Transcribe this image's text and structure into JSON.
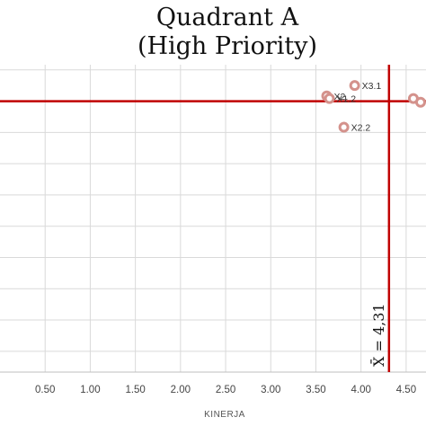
{
  "chart_data": {
    "type": "scatter",
    "title_lines": [
      "Quadrant A",
      "(High Priority)"
    ],
    "xlabel": "KINERJA",
    "ylabel": "",
    "xlim": [
      0.0,
      4.72
    ],
    "ylim": [
      4.03,
      4.62
    ],
    "x_ticks": [
      0.5,
      1.0,
      1.5,
      2.0,
      2.5,
      3.0,
      3.5,
      4.0,
      4.5
    ],
    "x_tick_labels": [
      "0.50",
      "1.00",
      "1.50",
      "2.00",
      "2.50",
      "3.00",
      "3.50",
      "4.00",
      "4.50"
    ],
    "y_gridlines": [
      4.07,
      4.13,
      4.19,
      4.25,
      4.31,
      4.37,
      4.43,
      4.49,
      4.55,
      4.61
    ],
    "grid": true,
    "mean_x": 4.31,
    "mean_x_label": "X̄ = 4,31",
    "mean_y": 4.55,
    "points": [
      {
        "label": "X3.1",
        "x": 3.93,
        "y": 4.58
      },
      {
        "label": "X2.",
        "x": 3.62,
        "y": 4.56
      },
      {
        "label": "X1.2",
        "x": 3.65,
        "y": 4.555
      },
      {
        "label": "X2.2",
        "x": 3.81,
        "y": 4.5
      },
      {
        "label": "",
        "x": 4.58,
        "y": 4.555
      },
      {
        "label": "",
        "x": 4.66,
        "y": 4.548
      }
    ],
    "colors": {
      "mean_lines": "#c00000",
      "point_stroke": "#d4928c",
      "grid": "#d9d9d9",
      "axis": "#bfbfbf"
    }
  }
}
